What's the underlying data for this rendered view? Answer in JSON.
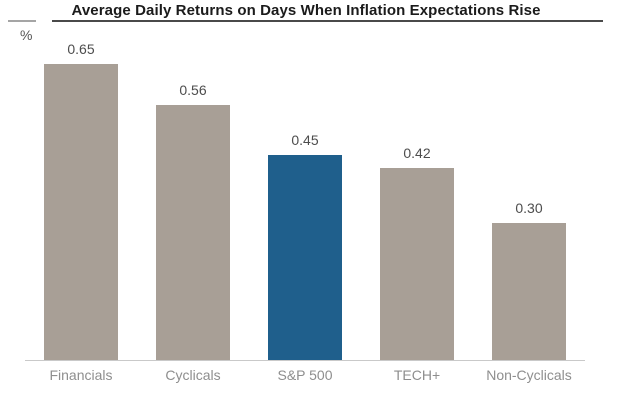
{
  "chart_data": {
    "type": "bar",
    "title": "Average Daily Returns on Days When Inflation Expectations Rise",
    "ylabel": "%",
    "xlabel": "",
    "categories": [
      "Financials",
      "Cyclicals",
      "S&P 500",
      "TECH+",
      "Non-Cyclicals"
    ],
    "values": [
      0.65,
      0.56,
      0.45,
      0.42,
      0.3
    ],
    "value_labels": [
      "0.65",
      "0.56",
      "0.45",
      "0.42",
      "0.30"
    ],
    "colors": [
      "#a89f96",
      "#a89f96",
      "#1f5f8c",
      "#a89f96",
      "#a89f96"
    ],
    "highlight_index": 2,
    "accent_color": "#1f5f8c",
    "default_bar_color": "#a89f96",
    "ylim": [
      0,
      0.8
    ],
    "grid": false,
    "legend": "none",
    "value_labels_shown": true
  }
}
